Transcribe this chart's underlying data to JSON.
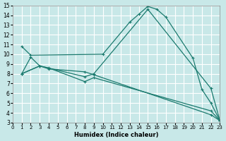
{
  "background_color": "#c8e8e8",
  "grid_color": "#ffffff",
  "line_color": "#1a7a6e",
  "xlabel": "Humidex (Indice chaleur)",
  "xlim": [
    0,
    23
  ],
  "ylim": [
    3,
    15
  ],
  "xticks": [
    0,
    1,
    2,
    3,
    4,
    5,
    6,
    7,
    8,
    9,
    10,
    11,
    12,
    13,
    14,
    15,
    16,
    17,
    18,
    19,
    20,
    21,
    22,
    23
  ],
  "yticks": [
    3,
    4,
    5,
    6,
    7,
    8,
    9,
    10,
    11,
    12,
    13,
    14,
    15
  ],
  "series": [
    {
      "x": [
        1,
        2,
        10,
        13,
        14,
        15,
        16,
        17,
        20,
        21,
        22,
        23
      ],
      "y": [
        10.8,
        9.9,
        10.0,
        13.3,
        14.1,
        14.9,
        14.6,
        13.8,
        9.6,
        6.4,
        5.0,
        3.2
      ]
    },
    {
      "x": [
        1,
        2,
        3,
        8,
        9,
        15,
        22,
        23
      ],
      "y": [
        8.0,
        9.7,
        8.8,
        7.7,
        8.0,
        14.6,
        6.5,
        3.2
      ]
    },
    {
      "x": [
        1,
        3,
        4,
        8,
        9,
        22,
        23
      ],
      "y": [
        8.0,
        8.8,
        8.6,
        7.2,
        7.6,
        4.2,
        3.2
      ]
    },
    {
      "x": [
        1,
        3,
        4,
        8,
        9,
        22,
        23
      ],
      "y": [
        8.0,
        8.8,
        8.5,
        8.2,
        7.9,
        3.8,
        3.2
      ]
    }
  ]
}
